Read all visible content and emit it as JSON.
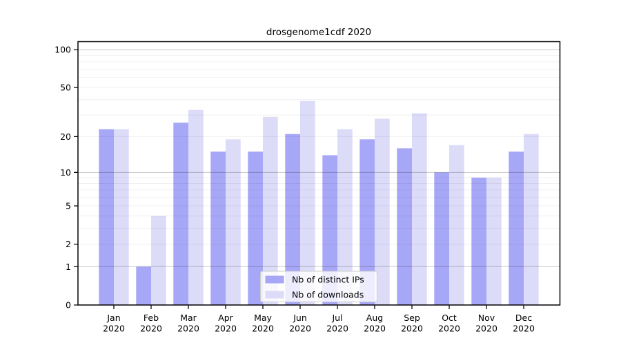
{
  "chart_data": {
    "type": "bar",
    "title": "drosgenome1cdf 2020",
    "categories": [
      "Jan 2020",
      "Feb 2020",
      "Mar 2020",
      "Apr 2020",
      "May 2020",
      "Jun 2020",
      "Jul 2020",
      "Aug 2020",
      "Sep 2020",
      "Oct 2020",
      "Nov 2020",
      "Dec 2020"
    ],
    "month_labels": [
      "Jan",
      "Feb",
      "Mar",
      "Apr",
      "May",
      "Jun",
      "Jul",
      "Aug",
      "Sep",
      "Oct",
      "Nov",
      "Dec"
    ],
    "year_label": "2020",
    "series": [
      {
        "name": "Nb of distinct IPs",
        "color": "#a7a7f7",
        "values": [
          23,
          1,
          26,
          15,
          15,
          21,
          14,
          19,
          16,
          10,
          9,
          15
        ]
      },
      {
        "name": "Nb of downloads",
        "color": "#dcdcf9",
        "values": [
          23,
          4,
          33,
          19,
          29,
          39,
          23,
          28,
          31,
          17,
          9,
          21
        ]
      }
    ],
    "yticks": [
      0,
      1,
      2,
      5,
      10,
      20,
      50,
      100
    ],
    "gridlines_major": [
      1,
      10,
      100
    ],
    "gridlines_minor": [
      2,
      3,
      4,
      5,
      6,
      7,
      8,
      9,
      20,
      30,
      40,
      50,
      60,
      70,
      80,
      90
    ],
    "yscale": "log10(value+1)",
    "ylim": [
      0,
      110
    ],
    "xlabel": "",
    "ylabel": "",
    "grid": true,
    "legend_position": "bottom-center",
    "axis_color": "#000000",
    "major_grid_color": "#c9c9c9",
    "minor_grid_color": "#efefef",
    "background": "#ffffff"
  }
}
